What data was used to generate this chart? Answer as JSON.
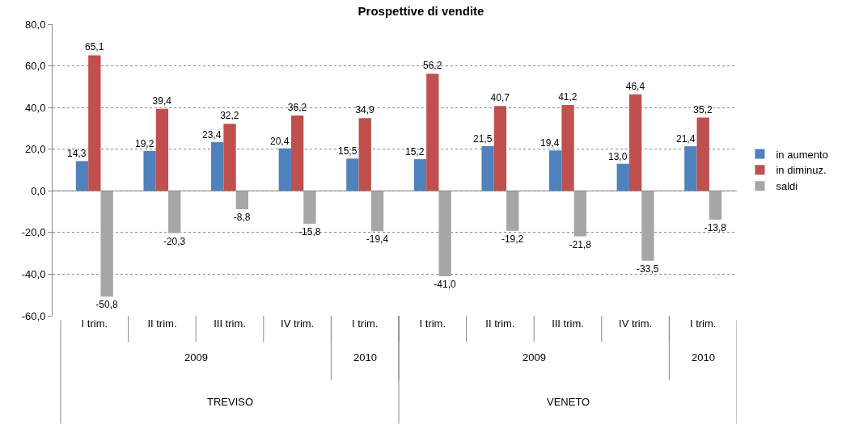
{
  "chart_data": {
    "type": "bar",
    "title": "Prospettive di vendite",
    "categories": [
      "I trim.",
      "II trim.",
      "III trim.",
      "IV trim.",
      "I trim.",
      "I trim.",
      "II trim.",
      "III trim.",
      "IV trim.",
      "I trim."
    ],
    "series": [
      {
        "name": "in aumento",
        "color": "#4f81bd",
        "values": [
          14.3,
          19.2,
          23.4,
          20.4,
          15.5,
          15.2,
          21.5,
          19.4,
          13.0,
          21.4
        ],
        "value_labels": [
          "14,3",
          "19,2",
          "23,4",
          "20,4",
          "15,5",
          "15,2",
          "21,5",
          "19,4",
          "13,0",
          "21,4"
        ]
      },
      {
        "name": "in diminuz.",
        "color": "#c0504d",
        "values": [
          65.1,
          39.4,
          32.2,
          36.2,
          34.9,
          56.2,
          40.7,
          41.2,
          46.4,
          35.2
        ],
        "value_labels": [
          "65,1",
          "39,4",
          "32,2",
          "36,2",
          "34,9",
          "56,2",
          "40,7",
          "41,2",
          "46,4",
          "35,2"
        ]
      },
      {
        "name": "saldi",
        "color": "#a6a6a6",
        "values": [
          -50.8,
          -20.3,
          -8.8,
          -15.8,
          -19.4,
          -41.0,
          -19.2,
          -21.8,
          -33.5,
          -13.8
        ],
        "value_labels": [
          "-50,8",
          "-20,3",
          "-8,8",
          "-15,8",
          "-19,4",
          "-41,0",
          "-19,2",
          "-21,8",
          "-33,5",
          "-13,8"
        ]
      }
    ],
    "ylim": [
      -60,
      80
    ],
    "yticks": [
      {
        "value": -60,
        "label": "-60,0"
      },
      {
        "value": -40,
        "label": "-40,0"
      },
      {
        "value": -20,
        "label": "-20,0"
      },
      {
        "value": 0,
        "label": "0,0"
      },
      {
        "value": 20,
        "label": "20,0"
      },
      {
        "value": 40,
        "label": "40,0"
      },
      {
        "value": 60,
        "label": "60,0"
      },
      {
        "value": 80,
        "label": "80,0"
      }
    ],
    "annotations": [
      "2009",
      "2010",
      "2009",
      "2010",
      "TREVISO",
      "VENETO"
    ],
    "grid": "y",
    "legend": "right"
  }
}
